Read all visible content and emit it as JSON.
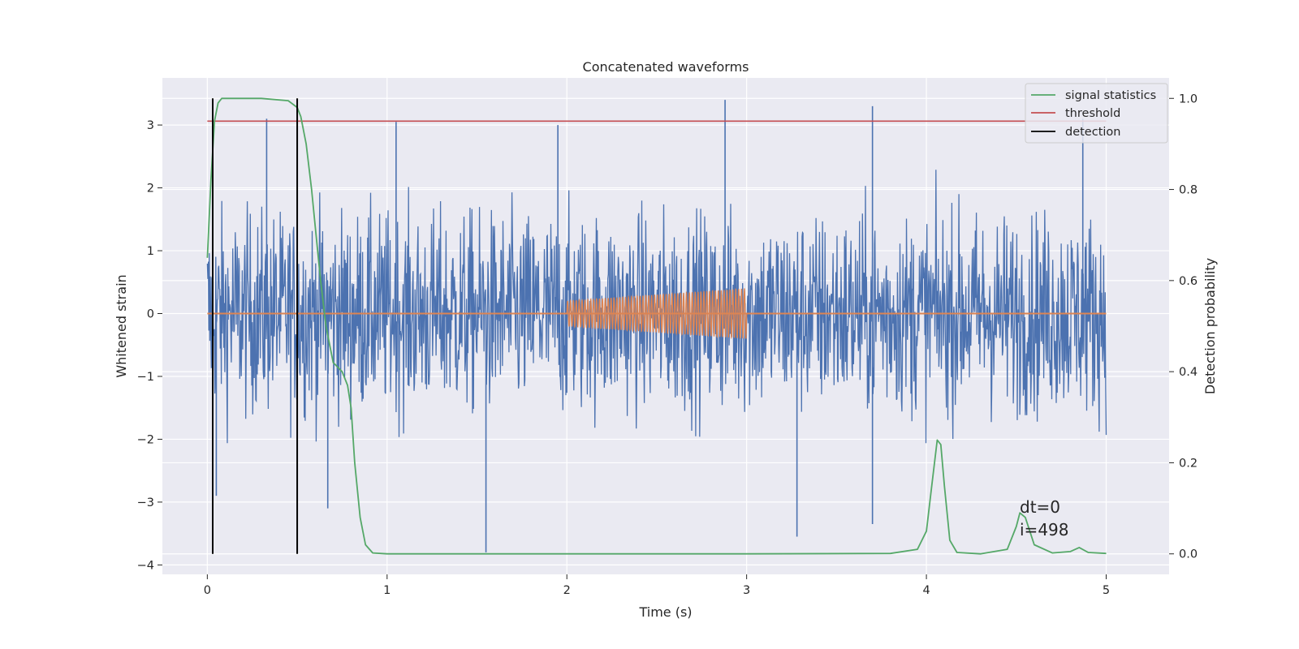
{
  "chart_data": {
    "type": "line",
    "title": "Concatenated waveforms",
    "xlabel": "Time (s)",
    "ylabel": "Whitened strain",
    "ylabel_right": "Detection probability",
    "xlim": [
      -0.25,
      5.35
    ],
    "ylim": [
      -4.15,
      3.75
    ],
    "ylim_right": [
      -0.045,
      1.045
    ],
    "x_ticks": [
      0,
      1,
      2,
      3,
      4,
      5
    ],
    "x_tick_labels": [
      "0",
      "1",
      "2",
      "3",
      "4",
      "5"
    ],
    "y_ticks": [
      -4,
      -3,
      -2,
      -1,
      0,
      1,
      2,
      3
    ],
    "y_tick_labels": [
      "−4",
      "−3",
      "−2",
      "−1",
      "0",
      "1",
      "2",
      "3"
    ],
    "y_right_ticks": [
      0.0,
      0.2,
      0.4,
      0.6,
      0.8,
      1.0
    ],
    "y_right_tick_labels": [
      "0.0",
      "0.2",
      "0.4",
      "0.6",
      "0.8",
      "1.0"
    ],
    "grid": true,
    "legend_position": "top-right",
    "legend": [
      {
        "label": "signal statistics",
        "color": "#55a868"
      },
      {
        "label": "threshold",
        "color": "#c44e52"
      },
      {
        "label": "detection",
        "color": "#000000"
      }
    ],
    "series": [
      {
        "kind": "noise",
        "axis": "left",
        "color": "#4c72b0",
        "x_range": [
          0,
          5
        ],
        "approx_range": [
          -3.8,
          3.4
        ],
        "notable_peaks": [
          {
            "x": 0.33,
            "y": 3.1
          },
          {
            "x": 1.05,
            "y": 3.05
          },
          {
            "x": 1.95,
            "y": 3.0
          },
          {
            "x": 2.88,
            "y": 3.4
          },
          {
            "x": 3.7,
            "y": 3.3
          },
          {
            "x": 4.87,
            "y": 3.1
          }
        ],
        "notable_troughs": [
          {
            "x": 0.05,
            "y": -2.9
          },
          {
            "x": 0.67,
            "y": -3.1
          },
          {
            "x": 1.55,
            "y": -3.8
          },
          {
            "x": 3.28,
            "y": -3.55
          },
          {
            "x": 3.7,
            "y": -3.35
          }
        ]
      },
      {
        "kind": "injected-waveform",
        "axis": "left",
        "color": "#dd8452",
        "x_start": 2.0,
        "x_end": 3.0,
        "amplitude_start": 0.2,
        "amplitude_end": 0.4,
        "cycles": 62,
        "baseline": 0
      },
      {
        "name": "signal statistics",
        "axis": "right",
        "color": "#55a868",
        "x": [
          0.0,
          0.02,
          0.04,
          0.06,
          0.08,
          0.1,
          0.15,
          0.3,
          0.45,
          0.5,
          0.52,
          0.55,
          0.58,
          0.6,
          0.63,
          0.66,
          0.7,
          0.75,
          0.78,
          0.8,
          0.82,
          0.85,
          0.88,
          0.92,
          1.0,
          2.0,
          3.0,
          3.8,
          3.95,
          4.0,
          4.03,
          4.06,
          4.08,
          4.1,
          4.13,
          4.17,
          4.3,
          4.45,
          4.5,
          4.52,
          4.55,
          4.6,
          4.7,
          4.8,
          4.85,
          4.9,
          5.0
        ],
        "y": [
          0.65,
          0.82,
          0.95,
          0.99,
          1.0,
          1.0,
          1.0,
          1.0,
          0.995,
          0.98,
          0.96,
          0.9,
          0.8,
          0.72,
          0.6,
          0.5,
          0.42,
          0.4,
          0.37,
          0.32,
          0.2,
          0.08,
          0.02,
          0.002,
          0.0,
          0.0,
          0.0,
          0.001,
          0.01,
          0.05,
          0.15,
          0.25,
          0.24,
          0.15,
          0.03,
          0.003,
          0.0,
          0.01,
          0.06,
          0.09,
          0.08,
          0.02,
          0.002,
          0.005,
          0.014,
          0.003,
          0.001
        ]
      },
      {
        "name": "threshold",
        "axis": "right",
        "color": "#c44e52",
        "x": [
          0,
          5
        ],
        "y": [
          0.95,
          0.95
        ]
      },
      {
        "name": "detection",
        "axis": "right",
        "color": "#000000",
        "vertical_lines_x": [
          0.03,
          0.5
        ],
        "y_range": [
          0,
          1
        ]
      }
    ],
    "annotations": [
      {
        "lines": [
          "dt=0",
          "i=498"
        ],
        "x": 4.5,
        "y": -3.3
      }
    ]
  }
}
